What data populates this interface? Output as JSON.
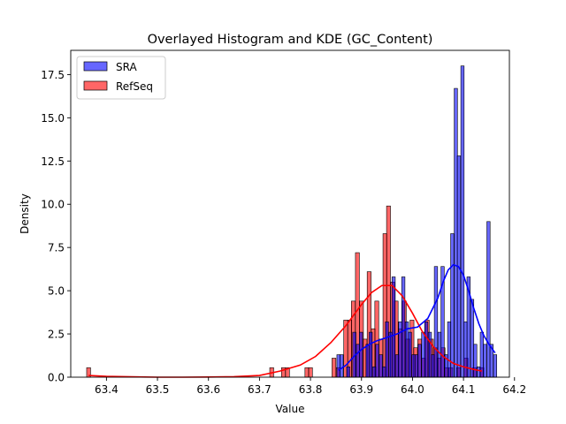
{
  "chart_data": {
    "type": "histogram",
    "title": "Overlayed Histogram and KDE (GC_Content)",
    "xlabel": "Value",
    "ylabel": "Density",
    "xlim": [
      63.33,
      64.19
    ],
    "ylim": [
      0,
      18.9
    ],
    "xticks": [
      "63.4",
      "63.5",
      "63.6",
      "63.7",
      "63.8",
      "63.9",
      "64.0",
      "64.1",
      "64.2"
    ],
    "yticks": [
      "0.0",
      "2.5",
      "5.0",
      "7.5",
      "10.0",
      "12.5",
      "15.0",
      "17.5"
    ],
    "grid": false,
    "legend_position": "upper-left",
    "series": [
      {
        "name": "SRA",
        "color": "#0000ff",
        "fill_alpha": 0.6,
        "bin_width": 0.00642,
        "bars": [
          [
            63.855,
            1.3
          ],
          [
            63.861,
            1.3
          ],
          [
            63.867,
            0.0
          ],
          [
            63.874,
            0.6
          ],
          [
            63.88,
            0.0
          ],
          [
            63.886,
            2.6
          ],
          [
            63.893,
            1.9
          ],
          [
            63.899,
            2.6
          ],
          [
            63.906,
            0.0
          ],
          [
            63.912,
            1.9
          ],
          [
            63.918,
            2.6
          ],
          [
            63.925,
            0.6
          ],
          [
            63.931,
            1.9
          ],
          [
            63.938,
            1.3
          ],
          [
            63.944,
            0.6
          ],
          [
            63.95,
            3.2
          ],
          [
            63.957,
            2.6
          ],
          [
            63.963,
            5.8
          ],
          [
            63.97,
            1.3
          ],
          [
            63.976,
            3.2
          ],
          [
            63.982,
            5.8
          ],
          [
            63.989,
            3.2
          ],
          [
            63.995,
            2.6
          ],
          [
            64.002,
            1.3
          ],
          [
            64.008,
            1.3
          ],
          [
            64.014,
            1.9
          ],
          [
            64.021,
            2.6
          ],
          [
            64.027,
            3.2
          ],
          [
            64.034,
            2.6
          ],
          [
            64.04,
            1.3
          ],
          [
            64.046,
            6.4
          ],
          [
            64.053,
            2.6
          ],
          [
            64.059,
            6.4
          ],
          [
            64.066,
            1.3
          ],
          [
            64.072,
            3.2
          ],
          [
            64.078,
            8.3
          ],
          [
            64.085,
            16.7
          ],
          [
            64.091,
            12.8
          ],
          [
            64.098,
            18.0
          ],
          [
            64.104,
            3.2
          ],
          [
            64.11,
            5.8
          ],
          [
            64.117,
            4.5
          ],
          [
            64.123,
            1.9
          ],
          [
            64.13,
            0.6
          ],
          [
            64.136,
            2.6
          ],
          [
            64.142,
            1.9
          ],
          [
            64.149,
            9.0
          ],
          [
            64.155,
            1.9
          ],
          [
            64.162,
            1.3
          ]
        ],
        "kde": [
          [
            63.855,
            0.4
          ],
          [
            63.87,
            0.7
          ],
          [
            63.885,
            1.2
          ],
          [
            63.9,
            1.6
          ],
          [
            63.915,
            1.9
          ],
          [
            63.93,
            2.1
          ],
          [
            63.95,
            2.3
          ],
          [
            63.97,
            2.5
          ],
          [
            63.99,
            2.8
          ],
          [
            64.01,
            2.9
          ],
          [
            64.03,
            3.4
          ],
          [
            64.05,
            4.6
          ],
          [
            64.06,
            5.5
          ],
          [
            64.07,
            6.2
          ],
          [
            64.08,
            6.5
          ],
          [
            64.09,
            6.4
          ],
          [
            64.1,
            5.9
          ],
          [
            64.11,
            5.0
          ],
          [
            64.12,
            4.0
          ],
          [
            64.13,
            3.1
          ],
          [
            64.14,
            2.4
          ],
          [
            64.15,
            1.9
          ],
          [
            64.162,
            1.4
          ]
        ]
      },
      {
        "name": "RefSeq",
        "color": "#ff0000",
        "fill_alpha": 0.6,
        "bin_width": 0.00764,
        "bars": [
          [
            63.365,
            0.55
          ],
          [
            63.724,
            0.55
          ],
          [
            63.747,
            0.55
          ],
          [
            63.755,
            0.55
          ],
          [
            63.793,
            0.55
          ],
          [
            63.8,
            0.55
          ],
          [
            63.846,
            1.1
          ],
          [
            63.854,
            0.55
          ],
          [
            63.869,
            3.3
          ],
          [
            63.877,
            3.3
          ],
          [
            63.884,
            4.4
          ],
          [
            63.892,
            7.2
          ],
          [
            63.9,
            4.4
          ],
          [
            63.907,
            2.2
          ],
          [
            63.915,
            6.1
          ],
          [
            63.923,
            2.8
          ],
          [
            63.93,
            4.4
          ],
          [
            63.938,
            2.2
          ],
          [
            63.946,
            8.3
          ],
          [
            63.953,
            9.9
          ],
          [
            63.961,
            5.5
          ],
          [
            63.968,
            4.4
          ],
          [
            63.976,
            2.8
          ],
          [
            63.984,
            4.4
          ],
          [
            63.991,
            2.2
          ],
          [
            63.999,
            3.3
          ],
          [
            64.006,
            1.7
          ],
          [
            64.014,
            2.2
          ],
          [
            64.022,
            1.1
          ],
          [
            64.029,
            3.3
          ],
          [
            64.037,
            2.2
          ],
          [
            64.044,
            1.7
          ],
          [
            64.052,
            1.1
          ],
          [
            64.06,
            1.7
          ],
          [
            64.067,
            0.55
          ],
          [
            64.075,
            0.55
          ],
          [
            64.09,
            0.55
          ],
          [
            64.105,
            1.1
          ],
          [
            64.121,
            0.55
          ],
          [
            64.136,
            0.55
          ]
        ],
        "kde": [
          [
            63.365,
            0.1
          ],
          [
            63.4,
            0.05
          ],
          [
            63.45,
            0.02
          ],
          [
            63.5,
            0.0
          ],
          [
            63.55,
            0.0
          ],
          [
            63.6,
            0.01
          ],
          [
            63.65,
            0.03
          ],
          [
            63.7,
            0.1
          ],
          [
            63.74,
            0.35
          ],
          [
            63.78,
            0.7
          ],
          [
            63.81,
            1.2
          ],
          [
            63.84,
            2.0
          ],
          [
            63.87,
            3.0
          ],
          [
            63.9,
            4.2
          ],
          [
            63.92,
            4.9
          ],
          [
            63.94,
            5.3
          ],
          [
            63.96,
            5.3
          ],
          [
            63.98,
            4.7
          ],
          [
            64.0,
            3.7
          ],
          [
            64.02,
            2.6
          ],
          [
            64.04,
            1.8
          ],
          [
            64.06,
            1.2
          ],
          [
            64.08,
            0.8
          ],
          [
            64.1,
            0.6
          ],
          [
            64.12,
            0.45
          ],
          [
            64.136,
            0.35
          ]
        ]
      }
    ]
  }
}
